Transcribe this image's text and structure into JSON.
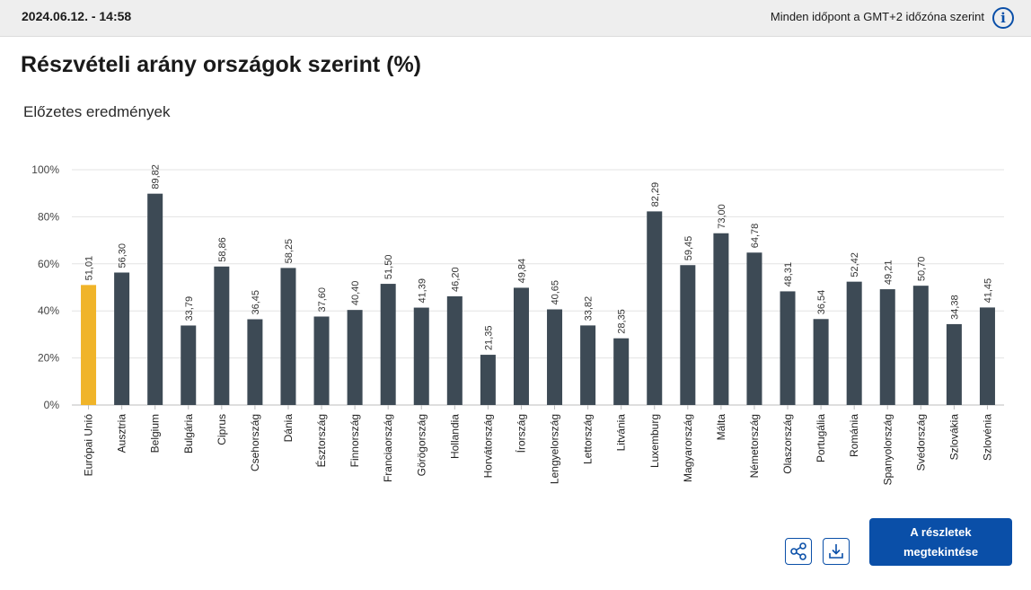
{
  "header": {
    "datetime": "2024.06.12. - 14:58",
    "timezone_note": "Minden időpont a GMT+2 időzóna szerint",
    "info_icon": "info-icon"
  },
  "title": "Részvételi arány országok szerint (%)",
  "subtitle": "Előzetes eredmények",
  "colors": {
    "highlight": "#f0b429",
    "bar": "#3d4a55",
    "accent": "#0a4fa8",
    "grid": "#e3e3e3"
  },
  "chart_data": {
    "type": "bar",
    "title": "Részvételi arány országok szerint (%)",
    "subtitle": "Előzetes eredmények",
    "ylim": [
      0,
      100
    ],
    "yticks": [
      "0%",
      "20%",
      "40%",
      "60%",
      "80%",
      "100%"
    ],
    "grid": true,
    "categories": [
      "Európai Unió",
      "Ausztria",
      "Belgium",
      "Bulgária",
      "Ciprus",
      "Csehország",
      "Dánia",
      "Észtország",
      "Finnország",
      "Franciaország",
      "Görögország",
      "Hollandia",
      "Horvátország",
      "Írország",
      "Lengyelország",
      "Lettország",
      "Litvánia",
      "Luxemburg",
      "Magyarország",
      "Málta",
      "Németország",
      "Olaszország",
      "Portugália",
      "Románia",
      "Spanyolország",
      "Svédország",
      "Szlovákia",
      "Szlovénia"
    ],
    "values": [
      51.01,
      56.3,
      89.82,
      33.79,
      58.86,
      36.45,
      58.25,
      37.6,
      40.4,
      51.5,
      41.39,
      46.2,
      21.35,
      49.84,
      40.65,
      33.82,
      28.35,
      82.29,
      59.45,
      73.0,
      64.78,
      48.31,
      36.54,
      52.42,
      49.21,
      50.7,
      34.38,
      41.45
    ],
    "value_labels": [
      "51,01",
      "56,30",
      "89,82",
      "33,79",
      "58,86",
      "36,45",
      "58,25",
      "37,60",
      "40,40",
      "51,50",
      "41,39",
      "46,20",
      "21,35",
      "49,84",
      "40,65",
      "33,82",
      "28,35",
      "82,29",
      "59,45",
      "73,00",
      "64,78",
      "48,31",
      "36,54",
      "52,42",
      "49,21",
      "50,70",
      "34,38",
      "41,45"
    ],
    "highlight_index": 0
  },
  "actions": {
    "share_icon": "share-icon",
    "download_icon": "download-icon",
    "details_line1": "A részletek",
    "details_line2": "megtekintése"
  }
}
